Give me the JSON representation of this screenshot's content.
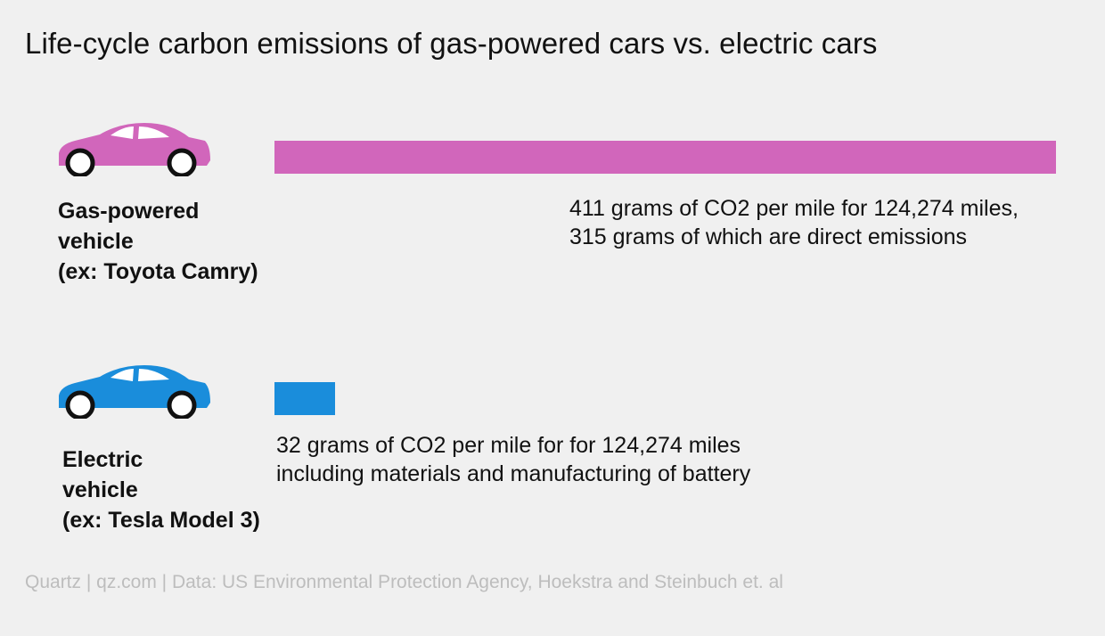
{
  "chart_data": {
    "type": "bar",
    "orientation": "horizontal",
    "title": "Life-cycle carbon emissions of gas-powered cars vs. electric cars",
    "source": "Quartz | qz.com | Data: US Environmental Protection Agency, Hoekstra and Steinbuch et. al",
    "categories": [
      [
        "Gas-powered",
        "vehicle",
        "(ex: Toyota Camry)"
      ],
      [
        "Electric",
        "vehicle",
        "(ex: Tesla Model 3)"
      ]
    ],
    "values": [
      411,
      32
    ],
    "unit": "grams of CO2 per mile",
    "annotations": [
      [
        "411 grams of CO2 per mile for 124,274 miles,",
        "315 grams of which are direct emissions"
      ],
      [
        "32 grams of CO2 per mile for for 124,274 miles",
        "including materials and manufacturing of battery"
      ]
    ],
    "colors": [
      "#d166bb",
      "#1a8ddb"
    ],
    "icons": [
      "car-icon",
      "car-icon"
    ],
    "xlim": [
      0,
      411
    ],
    "grid": false,
    "legend": "none"
  }
}
